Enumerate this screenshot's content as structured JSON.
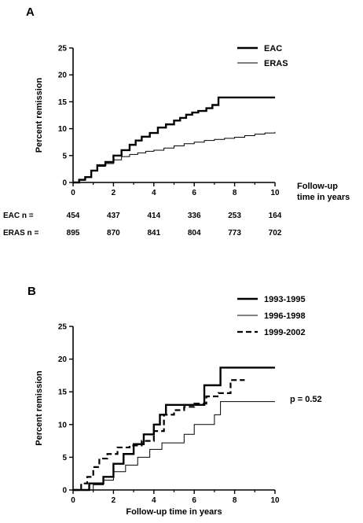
{
  "chart_data": [
    {
      "type": "line",
      "panel": "A",
      "ylabel": "Percent remission",
      "xlabel": "Follow-up time in years",
      "xlim": [
        0,
        10
      ],
      "ylim": [
        0,
        25
      ],
      "xticks": [
        0,
        2,
        4,
        6,
        8,
        10
      ],
      "yticks": [
        0,
        5,
        10,
        15,
        20,
        25
      ],
      "legend_position": "top-right",
      "series": [
        {
          "name": "EAC",
          "style": "thick",
          "x": [
            0,
            0.3,
            0.6,
            0.9,
            1.2,
            1.6,
            2.0,
            2.4,
            2.8,
            3.1,
            3.4,
            3.8,
            4.2,
            4.6,
            5.0,
            5.3,
            5.6,
            5.9,
            6.2,
            6.6,
            6.9,
            7.2,
            7.6,
            8.0,
            9.0,
            10.0
          ],
          "y": [
            0,
            0.5,
            1.0,
            2.2,
            3.2,
            3.8,
            5.0,
            6.0,
            7.0,
            7.8,
            8.5,
            9.2,
            10.2,
            10.8,
            11.5,
            12.0,
            12.6,
            13.0,
            13.3,
            13.8,
            14.4,
            15.8,
            15.8,
            15.8,
            15.8,
            15.8
          ]
        },
        {
          "name": "ERAS",
          "style": "thin",
          "x": [
            0,
            0.3,
            0.6,
            0.9,
            1.2,
            1.6,
            2.0,
            2.4,
            2.8,
            3.2,
            3.6,
            4.0,
            4.5,
            5.0,
            5.5,
            6.0,
            6.5,
            7.0,
            7.5,
            8.0,
            8.5,
            9.0,
            9.5,
            10.0
          ],
          "y": [
            0,
            0.4,
            1.0,
            2.2,
            3.0,
            3.5,
            4.2,
            4.8,
            5.2,
            5.5,
            5.8,
            6.0,
            6.4,
            6.8,
            7.2,
            7.5,
            7.8,
            8.0,
            8.2,
            8.4,
            8.7,
            9.0,
            9.2,
            9.4
          ]
        }
      ],
      "risk_table": {
        "times": [
          0,
          2,
          4,
          6,
          8,
          10
        ],
        "rows": [
          {
            "label": "EAC n =",
            "values": [
              "454",
              "437",
              "414",
              "336",
              "253",
              "164"
            ]
          },
          {
            "label": "ERAS n =",
            "values": [
              "895",
              "870",
              "841",
              "804",
              "773",
              "702"
            ]
          }
        ]
      },
      "x_title_lines": [
        "Follow-up",
        "time in years"
      ]
    },
    {
      "type": "line",
      "panel": "B",
      "ylabel": "Percent remission",
      "xlabel": "Follow-up time in years",
      "xlim": [
        0,
        10
      ],
      "ylim": [
        0,
        25
      ],
      "xticks": [
        0,
        2,
        4,
        6,
        8,
        10
      ],
      "yticks": [
        0,
        5,
        10,
        15,
        20,
        25
      ],
      "legend_position": "top-right",
      "annotation": "p = 0.52",
      "series": [
        {
          "name": "1993-1995",
          "style": "thick",
          "x": [
            0,
            0.8,
            1.5,
            2.0,
            2.5,
            3.0,
            3.5,
            4.0,
            4.3,
            4.6,
            5.0,
            5.5,
            6.0,
            6.5,
            7.0,
            7.3,
            10.0
          ],
          "y": [
            0,
            1.0,
            2.0,
            4.0,
            5.5,
            7.0,
            8.5,
            10.0,
            11.5,
            13.0,
            13.0,
            13.0,
            13.0,
            16.0,
            16.0,
            18.7,
            18.7
          ]
        },
        {
          "name": "1996-1998",
          "style": "thin",
          "x": [
            0,
            1.0,
            1.5,
            2.0,
            2.6,
            3.2,
            3.8,
            4.4,
            5.0,
            5.5,
            6.0,
            6.5,
            7.0,
            7.3,
            8.0,
            9.0,
            10.0
          ],
          "y": [
            0,
            0.8,
            1.5,
            2.8,
            3.8,
            5.0,
            6.2,
            7.2,
            7.2,
            8.5,
            10.0,
            10.0,
            11.5,
            13.5,
            13.5,
            13.5,
            13.5
          ]
        },
        {
          "name": "1999-2002",
          "style": "dashed",
          "x": [
            0,
            0.4,
            0.7,
            1.0,
            1.3,
            1.7,
            2.2,
            2.8,
            3.4,
            4.0,
            4.5,
            5.0,
            5.5,
            6.0,
            6.6,
            7.2,
            7.8,
            8.5
          ],
          "y": [
            0,
            1.0,
            2.0,
            3.5,
            4.8,
            5.5,
            6.5,
            6.8,
            7.5,
            9.0,
            11.5,
            12.2,
            12.7,
            13.2,
            14.3,
            14.8,
            16.8,
            16.8
          ]
        }
      ]
    }
  ]
}
